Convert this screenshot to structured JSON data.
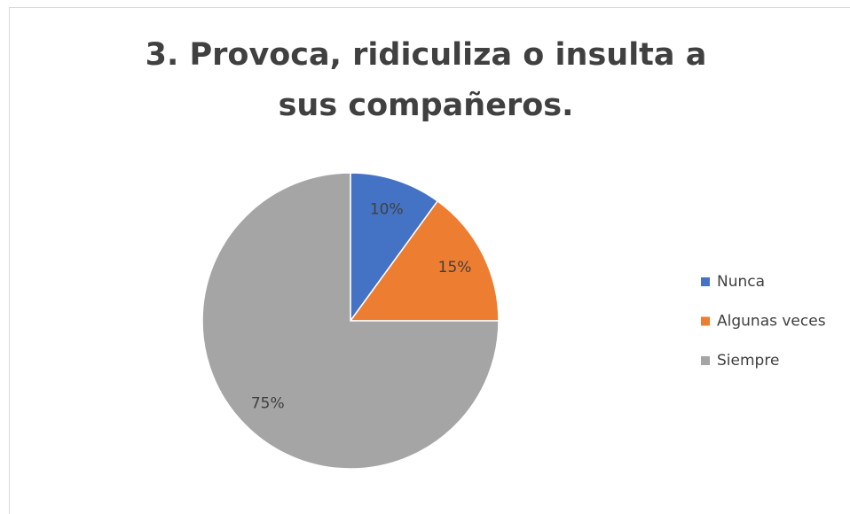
{
  "chart_data": {
    "type": "pie",
    "title": "3. Provoca, ridiculiza o insulta a sus compañeros.",
    "categories": [
      "Nunca",
      "Algunas veces",
      "Siempre"
    ],
    "values": [
      10,
      15,
      75
    ],
    "value_labels": [
      "10%",
      "15%",
      "75%"
    ],
    "colors": [
      "#4472c4",
      "#ed7d31",
      "#a5a5a5"
    ],
    "legend": "right"
  }
}
